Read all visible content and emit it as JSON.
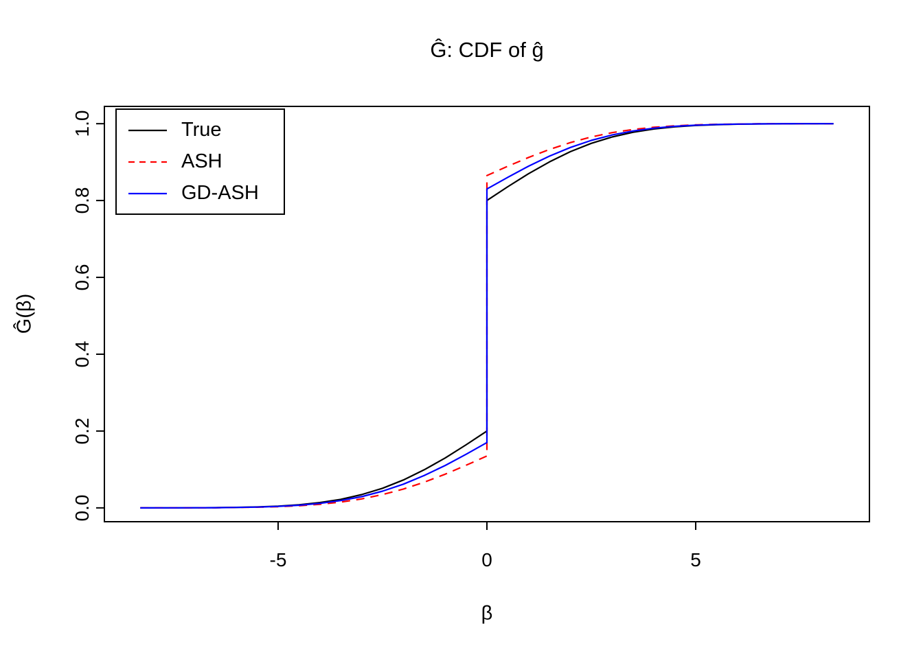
{
  "chart_data": {
    "type": "line",
    "title": "Ĝ: CDF of ĝ",
    "xlabel": "β",
    "ylabel": "Ĝ(β)",
    "xlim": [
      -9.16,
      9.16
    ],
    "ylim": [
      -0.036,
      1.045
    ],
    "grid": false,
    "legend_position": "top-left",
    "xticks": [
      -5,
      0,
      5
    ],
    "xtick_labels": [
      "-5",
      "0",
      "5"
    ],
    "yticks": [
      0.0,
      0.2,
      0.4,
      0.6,
      0.8,
      1.0
    ],
    "ytick_labels": [
      "0.0",
      "0.2",
      "0.4",
      "0.6",
      "0.8",
      "1.0"
    ],
    "x": [
      -8.3,
      -8,
      -7.5,
      -7,
      -6.5,
      -6,
      -5.5,
      -5,
      -4.5,
      -4,
      -3.5,
      -3,
      -2.5,
      -2,
      -1.5,
      -1,
      -0.5,
      0,
      0,
      0.5,
      1,
      1.5,
      2,
      2.5,
      3,
      3.5,
      4,
      4.5,
      5,
      5.5,
      6,
      6.5,
      7,
      7.5,
      8,
      8.3
    ],
    "series": [
      {
        "name": "True",
        "color": "#000000",
        "dash": "solid",
        "values": [
          0,
          0.0001,
          0.0001,
          0.0003,
          0.0006,
          0.0013,
          0.0025,
          0.0046,
          0.0082,
          0.0138,
          0.0223,
          0.0345,
          0.0511,
          0.0727,
          0.0993,
          0.1299,
          0.1641,
          0.2,
          0.8,
          0.8359,
          0.8701,
          0.9007,
          0.9273,
          0.9489,
          0.9655,
          0.9777,
          0.9862,
          0.9918,
          0.9954,
          0.9975,
          0.9987,
          0.9994,
          0.9997,
          0.9999,
          1,
          1
        ]
      },
      {
        "name": "ASH",
        "color": "#FF0000",
        "dash": "dashed",
        "values": [
          0,
          0.0001,
          0.0001,
          0.0002,
          0.0004,
          0.0009,
          0.0017,
          0.0031,
          0.0055,
          0.0093,
          0.0151,
          0.0233,
          0.0345,
          0.0491,
          0.067,
          0.0877,
          0.1108,
          0.135,
          0.865,
          0.8892,
          0.9123,
          0.933,
          0.9509,
          0.9655,
          0.9767,
          0.9849,
          0.9907,
          0.9945,
          0.9969,
          0.9983,
          0.9991,
          0.9996,
          0.9998,
          0.9999,
          1,
          1
        ]
      },
      {
        "name": "GD-ASH",
        "color": "#0000FF",
        "dash": "solid",
        "values": [
          0,
          0.0001,
          0.0001,
          0.0002,
          0.0005,
          0.0011,
          0.0021,
          0.0039,
          0.0069,
          0.0117,
          0.019,
          0.0293,
          0.0435,
          0.0618,
          0.0844,
          0.1104,
          0.1395,
          0.17,
          0.83,
          0.8605,
          0.8896,
          0.9156,
          0.9382,
          0.9565,
          0.9707,
          0.981,
          0.9883,
          0.9931,
          0.9961,
          0.9979,
          0.9989,
          0.9995,
          0.9998,
          0.9999,
          1,
          1
        ]
      }
    ]
  }
}
